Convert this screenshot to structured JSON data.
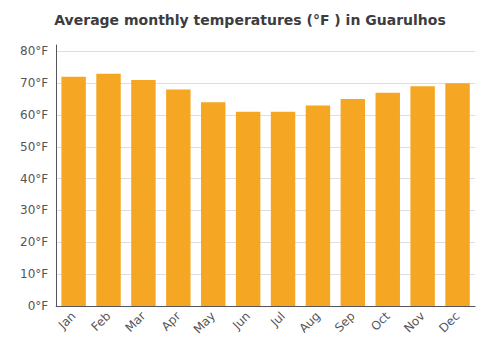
{
  "chart_data": {
    "type": "bar",
    "title": "Average monthly temperatures (°F ) in Guarulhos",
    "categories": [
      "Jan",
      "Feb",
      "Mar",
      "Apr",
      "May",
      "Jun",
      "Jul",
      "Aug",
      "Sep",
      "Oct",
      "Nov",
      "Dec"
    ],
    "values": [
      72,
      73,
      71,
      68,
      64,
      61,
      61,
      63,
      65,
      67,
      69,
      70
    ],
    "color": "#F5A623",
    "ylim": [
      0,
      82
    ],
    "yticks": [
      {
        "value": 0,
        "label": "0°F"
      },
      {
        "value": 10,
        "label": "10°F"
      },
      {
        "value": 20,
        "label": "20°F"
      },
      {
        "value": 30,
        "label": "30°F"
      },
      {
        "value": 40,
        "label": "40°F"
      },
      {
        "value": 50,
        "label": "50°F"
      },
      {
        "value": 60,
        "label": "60°F"
      },
      {
        "value": 70,
        "label": "70°F"
      },
      {
        "value": 80,
        "label": "80°F"
      }
    ],
    "grid": true
  }
}
